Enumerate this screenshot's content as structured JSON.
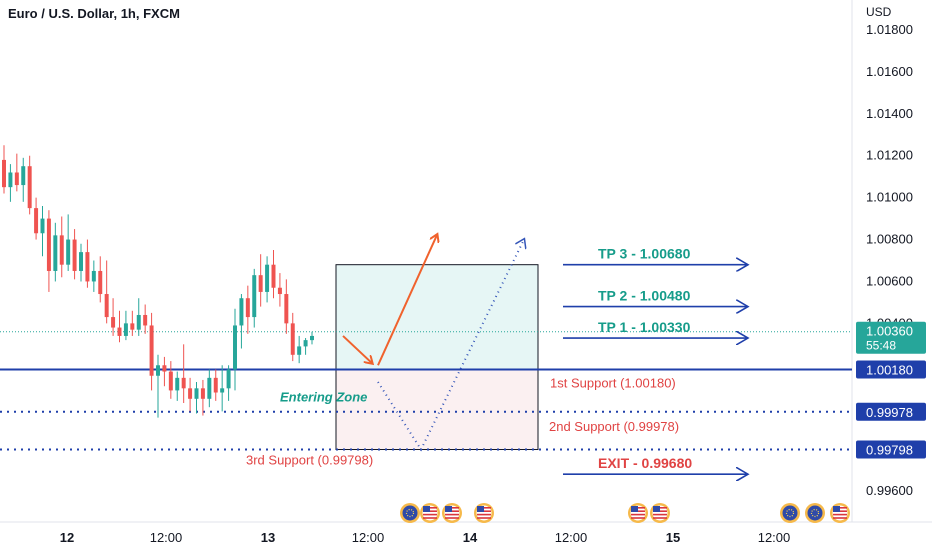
{
  "header": {
    "symbol_title": "Euro / U.S. Dollar, 1h, FXCM",
    "currency": "USD"
  },
  "colors": {
    "up": "#26a69a",
    "down": "#ef5350",
    "level_line": "#1f3faa",
    "tp_text": "#169c8a",
    "support_text": "#e04343",
    "price_badge": "#26a69a",
    "arrow_orange": "#f0622d",
    "arrow_blue_dotted": "#3455b8",
    "box_upper_fill": "#e6f6f5",
    "box_lower_fill": "#fbf0f1"
  },
  "chart_data": {
    "type": "candlestick",
    "title": "Euro / U.S. Dollar, 1h, FXCM",
    "ylabel": "USD",
    "ylim": [
      0.9944,
      1.019
    ],
    "y_ticks": [
      "1.01800",
      "1.01600",
      "1.01400",
      "1.01200",
      "1.01000",
      "1.00800",
      "1.00600",
      "1.00400",
      "0.99600"
    ],
    "x_ticks": [
      "12",
      "12:00",
      "13",
      "12:00",
      "14",
      "12:00",
      "15",
      "12:00"
    ],
    "candles": [
      {
        "o": 1.0118,
        "h": 1.0125,
        "l": 1.0102,
        "c": 1.0105
      },
      {
        "o": 1.0105,
        "h": 1.0116,
        "l": 1.0098,
        "c": 1.0112
      },
      {
        "o": 1.0112,
        "h": 1.0121,
        "l": 1.0103,
        "c": 1.0106
      },
      {
        "o": 1.0106,
        "h": 1.0119,
        "l": 1.0098,
        "c": 1.0115
      },
      {
        "o": 1.0115,
        "h": 1.012,
        "l": 1.0092,
        "c": 1.0095
      },
      {
        "o": 1.0095,
        "h": 1.01,
        "l": 1.008,
        "c": 1.0083
      },
      {
        "o": 1.0083,
        "h": 1.0096,
        "l": 1.0072,
        "c": 1.009
      },
      {
        "o": 1.009,
        "h": 1.0094,
        "l": 1.0055,
        "c": 1.0065
      },
      {
        "o": 1.0065,
        "h": 1.0088,
        "l": 1.006,
        "c": 1.0082
      },
      {
        "o": 1.0082,
        "h": 1.0091,
        "l": 1.0062,
        "c": 1.0068
      },
      {
        "o": 1.0068,
        "h": 1.0092,
        "l": 1.0065,
        "c": 1.008
      },
      {
        "o": 1.008,
        "h": 1.0085,
        "l": 1.0061,
        "c": 1.0065
      },
      {
        "o": 1.0065,
        "h": 1.0078,
        "l": 1.006,
        "c": 1.0074
      },
      {
        "o": 1.0074,
        "h": 1.008,
        "l": 1.0057,
        "c": 1.006
      },
      {
        "o": 1.006,
        "h": 1.007,
        "l": 1.0055,
        "c": 1.0065
      },
      {
        "o": 1.0065,
        "h": 1.0072,
        "l": 1.005,
        "c": 1.0054
      },
      {
        "o": 1.0054,
        "h": 1.007,
        "l": 1.004,
        "c": 1.0043
      },
      {
        "o": 1.0043,
        "h": 1.0052,
        "l": 1.0034,
        "c": 1.0038
      },
      {
        "o": 1.0038,
        "h": 1.0046,
        "l": 1.0031,
        "c": 1.0034
      },
      {
        "o": 1.0034,
        "h": 1.0046,
        "l": 1.0032,
        "c": 1.004
      },
      {
        "o": 1.004,
        "h": 1.0046,
        "l": 1.0034,
        "c": 1.0037
      },
      {
        "o": 1.0037,
        "h": 1.0052,
        "l": 1.0034,
        "c": 1.0044
      },
      {
        "o": 1.0044,
        "h": 1.0049,
        "l": 1.0035,
        "c": 1.0039
      },
      {
        "o": 1.0039,
        "h": 1.0045,
        "l": 1.0008,
        "c": 1.0015
      },
      {
        "o": 1.0015,
        "h": 1.0025,
        "l": 0.9995,
        "c": 1.002
      },
      {
        "o": 1.002,
        "h": 1.0024,
        "l": 1.001,
        "c": 1.0017
      },
      {
        "o": 1.0017,
        "h": 1.0022,
        "l": 1.0004,
        "c": 1.0008
      },
      {
        "o": 1.0008,
        "h": 1.0017,
        "l": 1.0003,
        "c": 1.0014
      },
      {
        "o": 1.0014,
        "h": 1.003,
        "l": 1.0002,
        "c": 1.0009
      },
      {
        "o": 1.0009,
        "h": 1.0014,
        "l": 0.9998,
        "c": 1.0004
      },
      {
        "o": 1.0004,
        "h": 1.0012,
        "l": 0.9997,
        "c": 1.0009
      },
      {
        "o": 1.0009,
        "h": 1.0013,
        "l": 0.9996,
        "c": 1.0004
      },
      {
        "o": 1.0004,
        "h": 1.0018,
        "l": 1.0,
        "c": 1.0014
      },
      {
        "o": 1.0014,
        "h": 1.0018,
        "l": 1.0003,
        "c": 1.0007
      },
      {
        "o": 1.0007,
        "h": 1.002,
        "l": 0.9998,
        "c": 1.0009
      },
      {
        "o": 1.0009,
        "h": 1.002,
        "l": 1.0003,
        "c": 1.0018
      },
      {
        "o": 1.0018,
        "h": 1.0047,
        "l": 1.0008,
        "c": 1.0039
      },
      {
        "o": 1.0039,
        "h": 1.0054,
        "l": 1.0028,
        "c": 1.0052
      },
      {
        "o": 1.0052,
        "h": 1.0058,
        "l": 1.0035,
        "c": 1.0043
      },
      {
        "o": 1.0043,
        "h": 1.0066,
        "l": 1.0038,
        "c": 1.0063
      },
      {
        "o": 1.0063,
        "h": 1.0073,
        "l": 1.0048,
        "c": 1.0055
      },
      {
        "o": 1.0055,
        "h": 1.0072,
        "l": 1.005,
        "c": 1.0068
      },
      {
        "o": 1.0068,
        "h": 1.0075,
        "l": 1.0052,
        "c": 1.0057
      },
      {
        "o": 1.0057,
        "h": 1.0064,
        "l": 1.0048,
        "c": 1.0054
      },
      {
        "o": 1.0054,
        "h": 1.0061,
        "l": 1.0035,
        "c": 1.004
      },
      {
        "o": 1.004,
        "h": 1.0045,
        "l": 1.0022,
        "c": 1.0025
      },
      {
        "o": 1.0025,
        "h": 1.0034,
        "l": 1.0021,
        "c": 1.0029
      },
      {
        "o": 1.0029,
        "h": 1.0033,
        "l": 1.0025,
        "c": 1.0032
      },
      {
        "o": 1.0032,
        "h": 1.0036,
        "l": 1.003,
        "c": 1.0034
      }
    ],
    "current_price": {
      "label": "1.00360",
      "timer": "55:48",
      "value": 1.0036
    },
    "levels": [
      {
        "name": "1st Support",
        "value": 1.0018,
        "label": "1st Support (1.00180)",
        "badge": "1.00180",
        "style": "solid"
      },
      {
        "name": "2nd Support",
        "value": 0.99978,
        "label": "2nd Support (0.99978)",
        "badge": "0.99978",
        "style": "dotted"
      },
      {
        "name": "3rd Support",
        "value": 0.99798,
        "label": "3rd Support (0.99798)",
        "badge": "0.99798",
        "style": "dotted"
      }
    ],
    "targets": [
      {
        "label": "TP 3 - 1.00680",
        "value": 1.0068
      },
      {
        "label": "TP 2 - 1.00480",
        "value": 1.0048
      },
      {
        "label": "TP 1 - 1.00330",
        "value": 1.0033
      },
      {
        "label": "EXIT - 0.99680",
        "value": 0.9968
      }
    ],
    "zone": {
      "label": "Entering Zone",
      "upper_top": 1.0068,
      "mid": 1.0018,
      "lower_bottom": 0.99798
    },
    "event_markers": [
      "eu",
      "us",
      "us",
      "us",
      "us",
      "us",
      "eu",
      "eu",
      "us"
    ]
  }
}
